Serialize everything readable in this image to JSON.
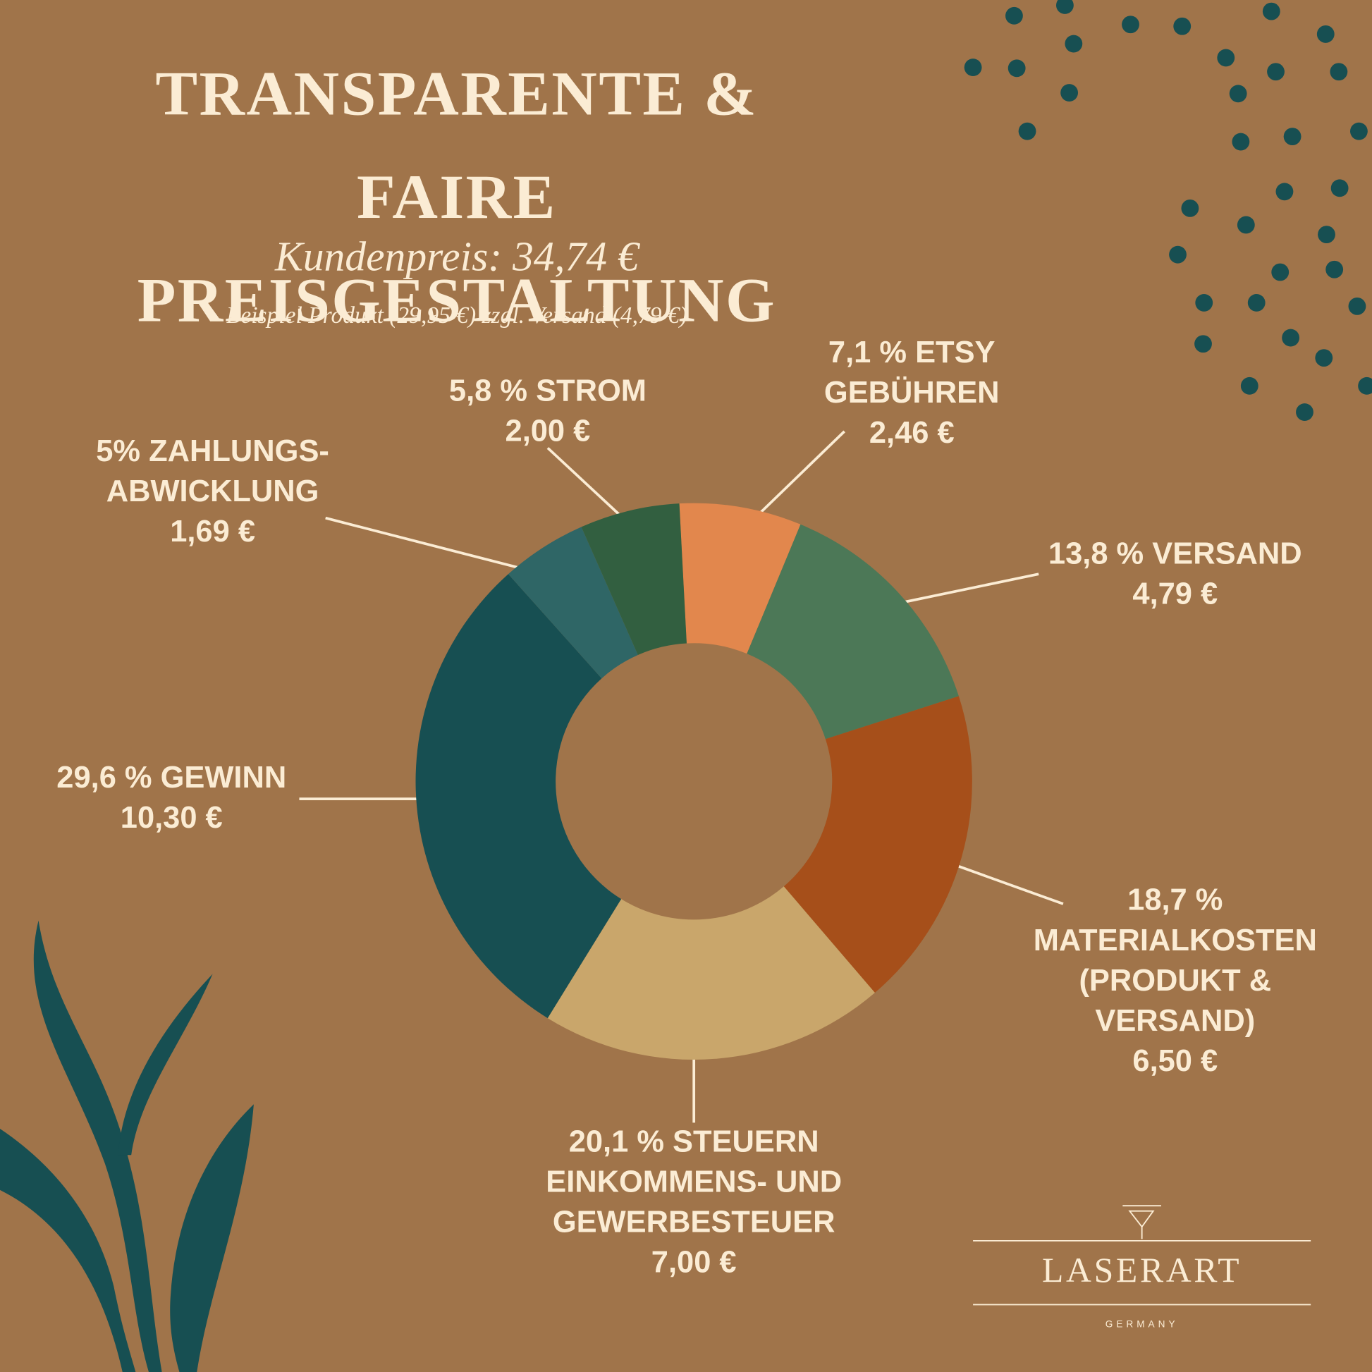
{
  "chart_data": {
    "type": "donut",
    "title": "TRANSPARENTE & FAIRE PREISGESTALTUNG",
    "subtitle": "Kundenpreis: 34,74 €",
    "note": "Beispiel Produkt (29,95 €) zzgl. Versand (4,79 €)",
    "categories": [
      "ETSY GEBÜHREN",
      "VERSAND",
      "MATERIALKOSTEN (PRODUKT & VERSAND)",
      "STEUERN EINKOMMENS- UND GEWERBESTEUER",
      "GEWINN",
      "ZAHLUNGS- ABWICKLUNG",
      "STROM"
    ],
    "values": [
      7.1,
      13.8,
      18.7,
      20.1,
      29.6,
      5,
      5.8
    ],
    "value_labels": [
      "7,1 %",
      "13,8 %",
      "18,7 %",
      "20,1 %",
      "29,6 %",
      "5%",
      "5,8 %"
    ],
    "amounts": [
      2.46,
      4.79,
      6.5,
      7.0,
      10.3,
      1.69,
      2.0
    ],
    "amount_labels": [
      "2,46 €",
      "4,79 €",
      "6,50 €",
      "7,00 €",
      "10,30 €",
      "1,69 €",
      "2,00 €"
    ],
    "colors": [
      "#e2874d",
      "#4c7857",
      "#a64f1a",
      "#c9a66b",
      "#174f52",
      "#2f6666",
      "#325f40"
    ]
  },
  "branding": {
    "name": "LASERART",
    "tagline": "GERMANY"
  }
}
